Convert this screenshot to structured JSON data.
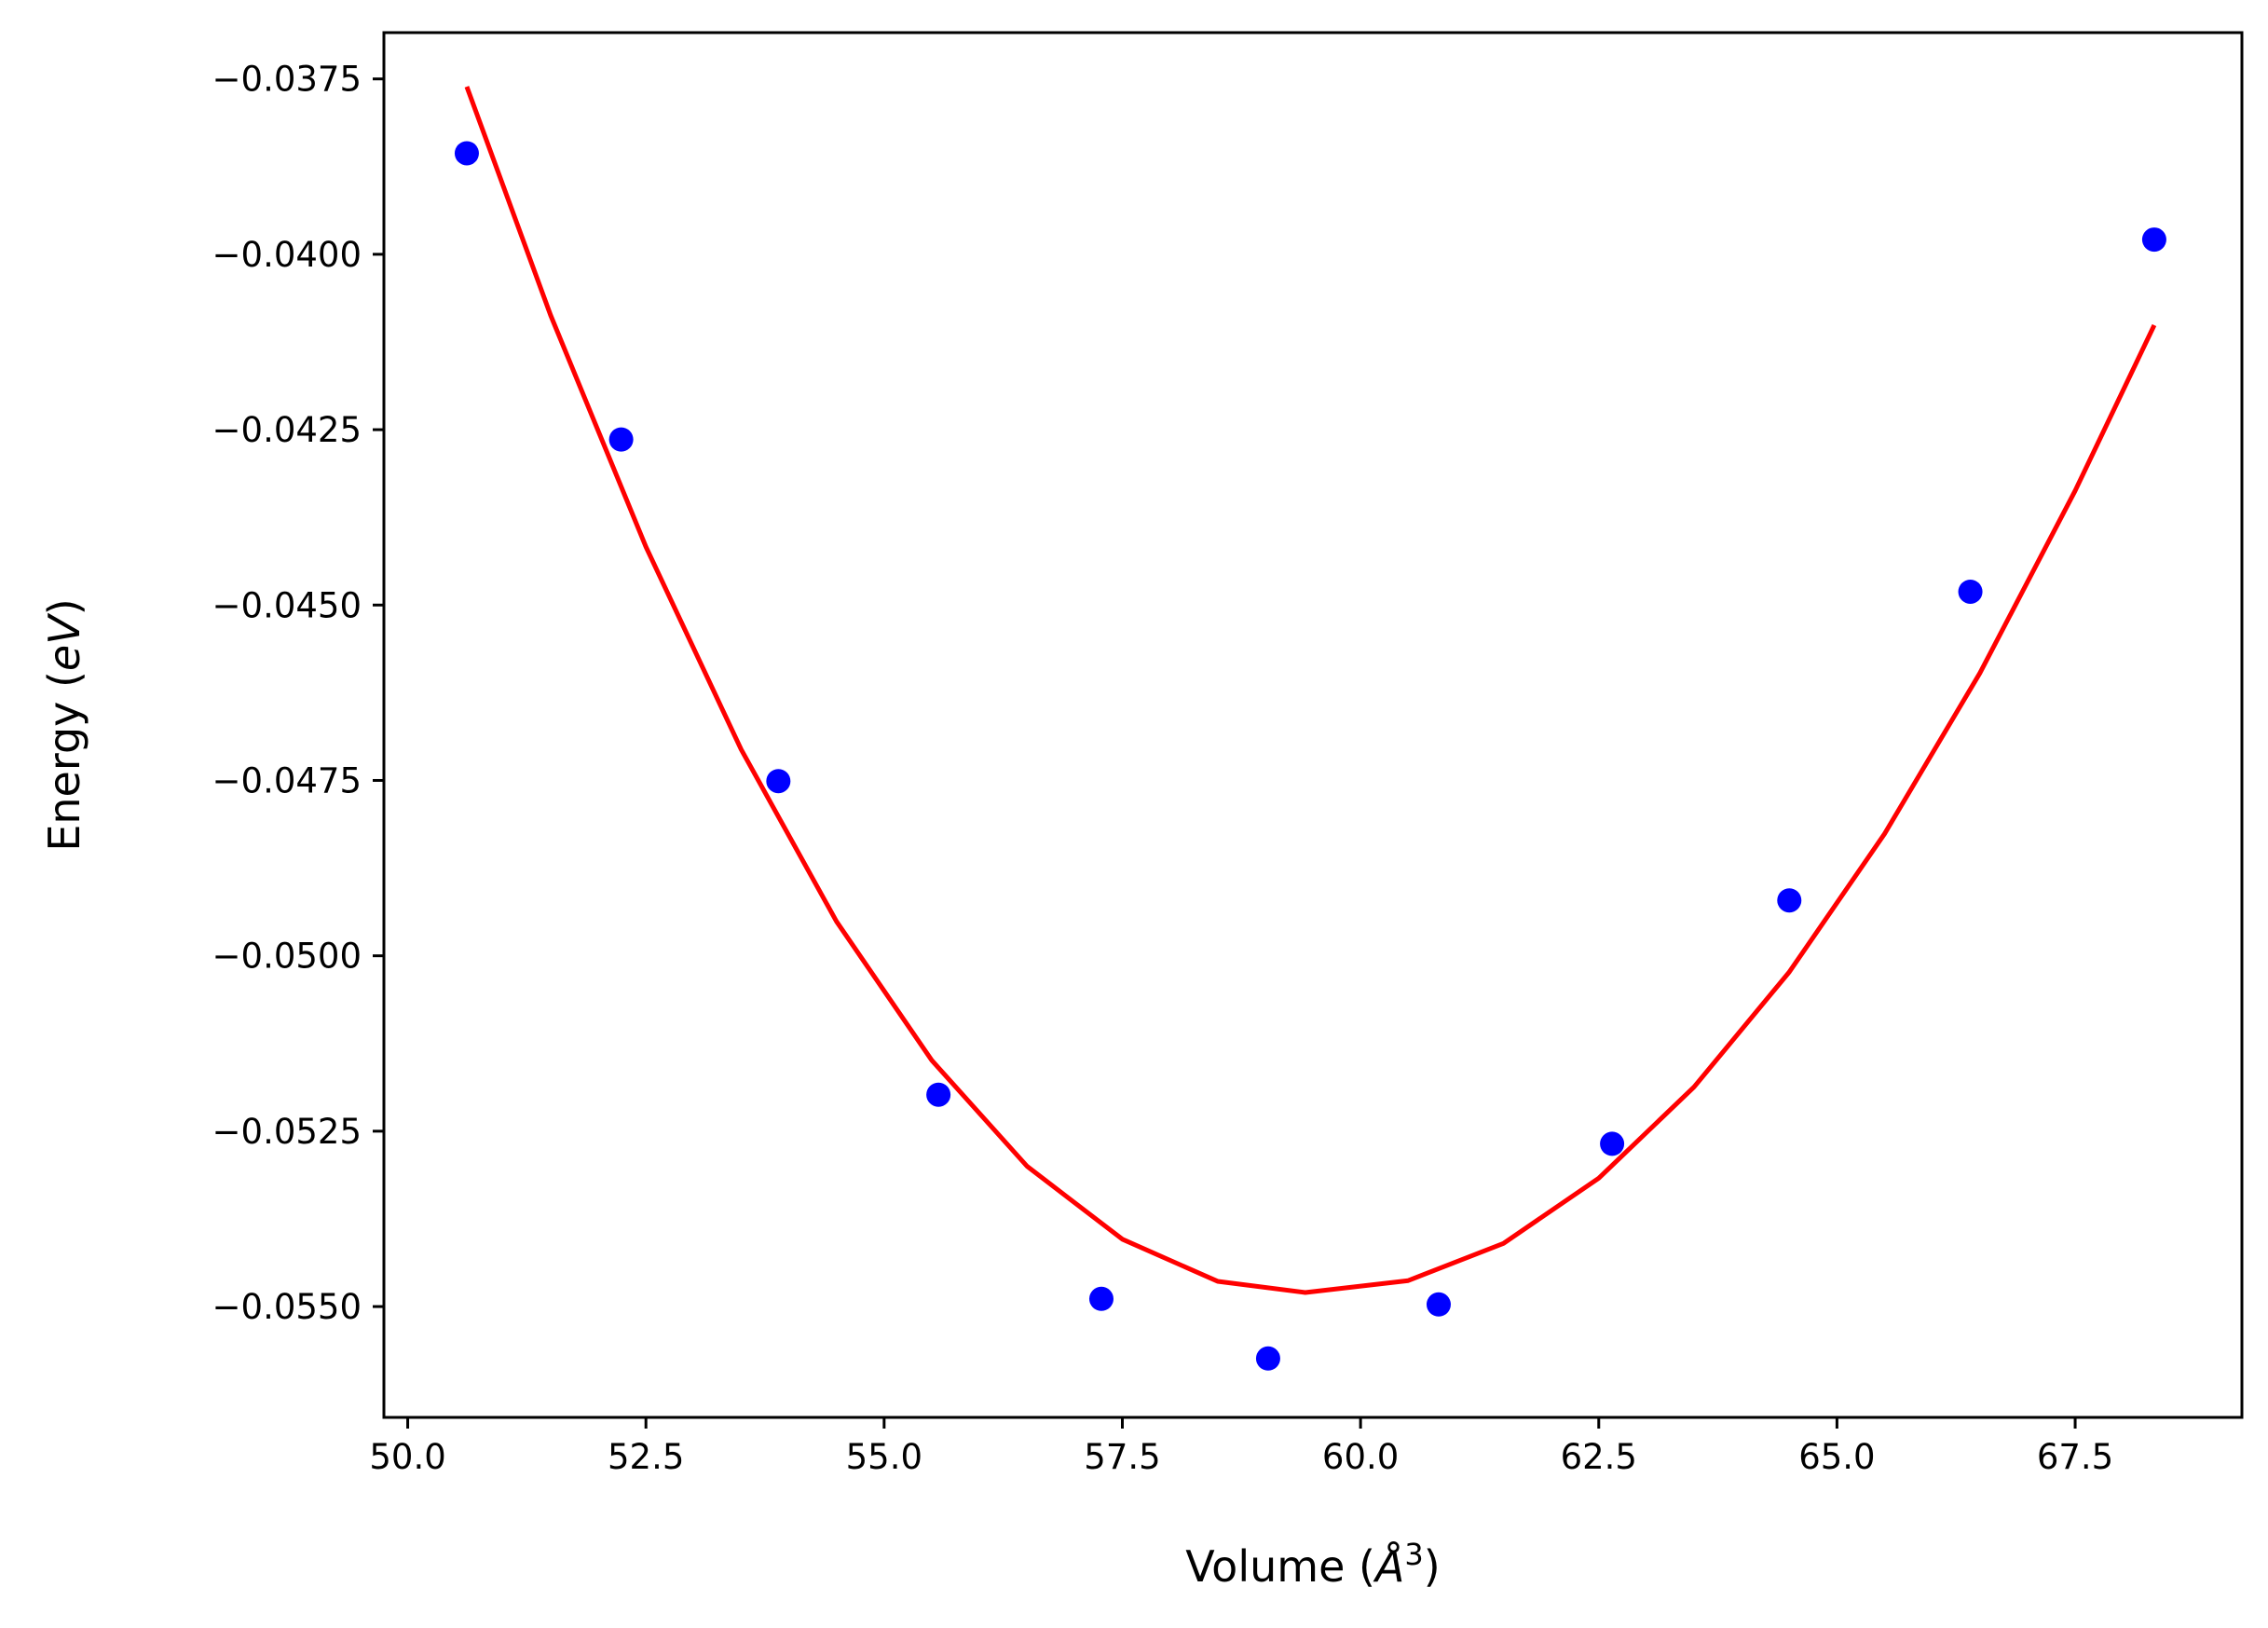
{
  "chart_data": {
    "type": "scatter",
    "title": "",
    "xlabel": {
      "prefix": "Volume (",
      "unit_symbol": "Å",
      "unit_power": "3",
      "suffix": ")"
    },
    "ylabel": {
      "prefix": "Energy (",
      "unit_symbol": "eV",
      "suffix": ")"
    },
    "xlim": [
      49.75,
      69.25
    ],
    "ylim": [
      -0.05658,
      -0.03684
    ],
    "xticks": [
      50.0,
      52.5,
      55.0,
      57.5,
      60.0,
      62.5,
      65.0,
      67.5
    ],
    "xtick_labels": [
      "50.0",
      "52.5",
      "55.0",
      "57.5",
      "60.0",
      "62.5",
      "65.0",
      "67.5"
    ],
    "yticks": [
      -0.0375,
      -0.04,
      -0.0425,
      -0.045,
      -0.0475,
      -0.05,
      -0.0525,
      -0.055
    ],
    "ytick_labels": [
      "−0.0375",
      "−0.0400",
      "−0.0425",
      "−0.0450",
      "−0.0475",
      "−0.0500",
      "−0.0525",
      "−0.0550"
    ],
    "grid": false,
    "legend": null,
    "series": [
      {
        "type": "scatter",
        "color": "#0000ff",
        "x": [
          50.62,
          52.24,
          53.89,
          55.57,
          57.28,
          59.03,
          60.82,
          62.64,
          64.5,
          66.4,
          68.33
        ],
        "y": [
          -0.03856,
          -0.04264,
          -0.04751,
          -0.05198,
          -0.05489,
          -0.05574,
          -0.05497,
          -0.05268,
          -0.04921,
          -0.04481,
          -0.03979
        ]
      },
      {
        "type": "line",
        "color": "#ff0000",
        "x": [
          50.62,
          51.5,
          52.5,
          53.5,
          54.5,
          55.5,
          56.5,
          57.5,
          58.5,
          59.42,
          60.5,
          61.5,
          62.5,
          63.5,
          64.5,
          65.5,
          66.5,
          67.5,
          68.33
        ],
        "y": [
          -0.03761,
          -0.04087,
          -0.04417,
          -0.04706,
          -0.04951,
          -0.05149,
          -0.053,
          -0.05404,
          -0.05464,
          -0.0548,
          -0.05463,
          -0.0541,
          -0.05317,
          -0.05187,
          -0.05023,
          -0.04826,
          -0.04597,
          -0.04337,
          -0.04101
        ]
      }
    ]
  }
}
